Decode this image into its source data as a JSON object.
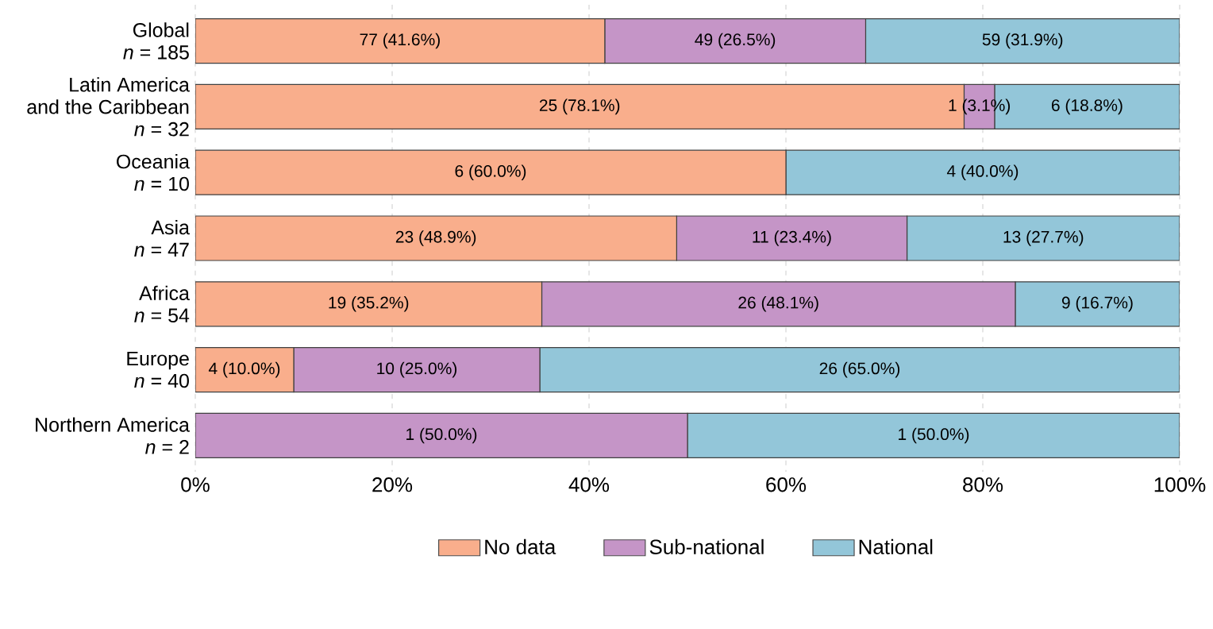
{
  "chart_data": {
    "type": "bar",
    "orientation": "horizontal",
    "stacked": true,
    "categories": [
      "Global\n*n* = 185",
      "Latin America\nand the Caribbean\n*n* = 32",
      "Oceania\n*n* = 10",
      "Asia\n*n* = 47",
      "Africa\n*n* = 54",
      "Europe\n*n* = 40",
      "Northern America\n*n* = 2"
    ],
    "series": [
      {
        "name": "No data",
        "color": "#f9ae8c",
        "values": [
          41.6,
          78.1,
          60.0,
          48.9,
          35.2,
          10.0,
          0
        ],
        "value_labels": [
          "77 (41.6%)",
          "25 (78.1%)",
          "6 (60.0%)",
          "23 (48.9%)",
          "19 (35.2%)",
          "4 (10.0%)",
          null
        ]
      },
      {
        "name": "Sub-national",
        "color": "#c595c7",
        "values": [
          26.5,
          3.1,
          0,
          23.4,
          48.1,
          25.0,
          50.0
        ],
        "value_labels": [
          "49 (26.5%)",
          "1 (3.1%)",
          null,
          "11 (23.4%)",
          "26 (48.1%)",
          "10 (25.0%)",
          "1 (50.0%)"
        ]
      },
      {
        "name": "National",
        "color": "#93c6d9",
        "values": [
          31.9,
          18.8,
          40.0,
          27.7,
          16.7,
          65.0,
          50.0
        ],
        "value_labels": [
          "59 (31.9%)",
          "6 (18.8%)",
          "4 (40.0%)",
          "13 (27.7%)",
          "9 (16.7%)",
          "26 (65.0%)",
          "1 (50.0%)"
        ]
      }
    ],
    "xlim": [
      0,
      100
    ],
    "xticks": [
      {
        "value": 0,
        "label": "0%"
      },
      {
        "value": 20,
        "label": "20%"
      },
      {
        "value": 40,
        "label": "40%"
      },
      {
        "value": 60,
        "label": "60%"
      },
      {
        "value": 80,
        "label": "80%"
      },
      {
        "value": 100,
        "label": "100%"
      }
    ],
    "grid": "x",
    "legend": "bottom"
  }
}
